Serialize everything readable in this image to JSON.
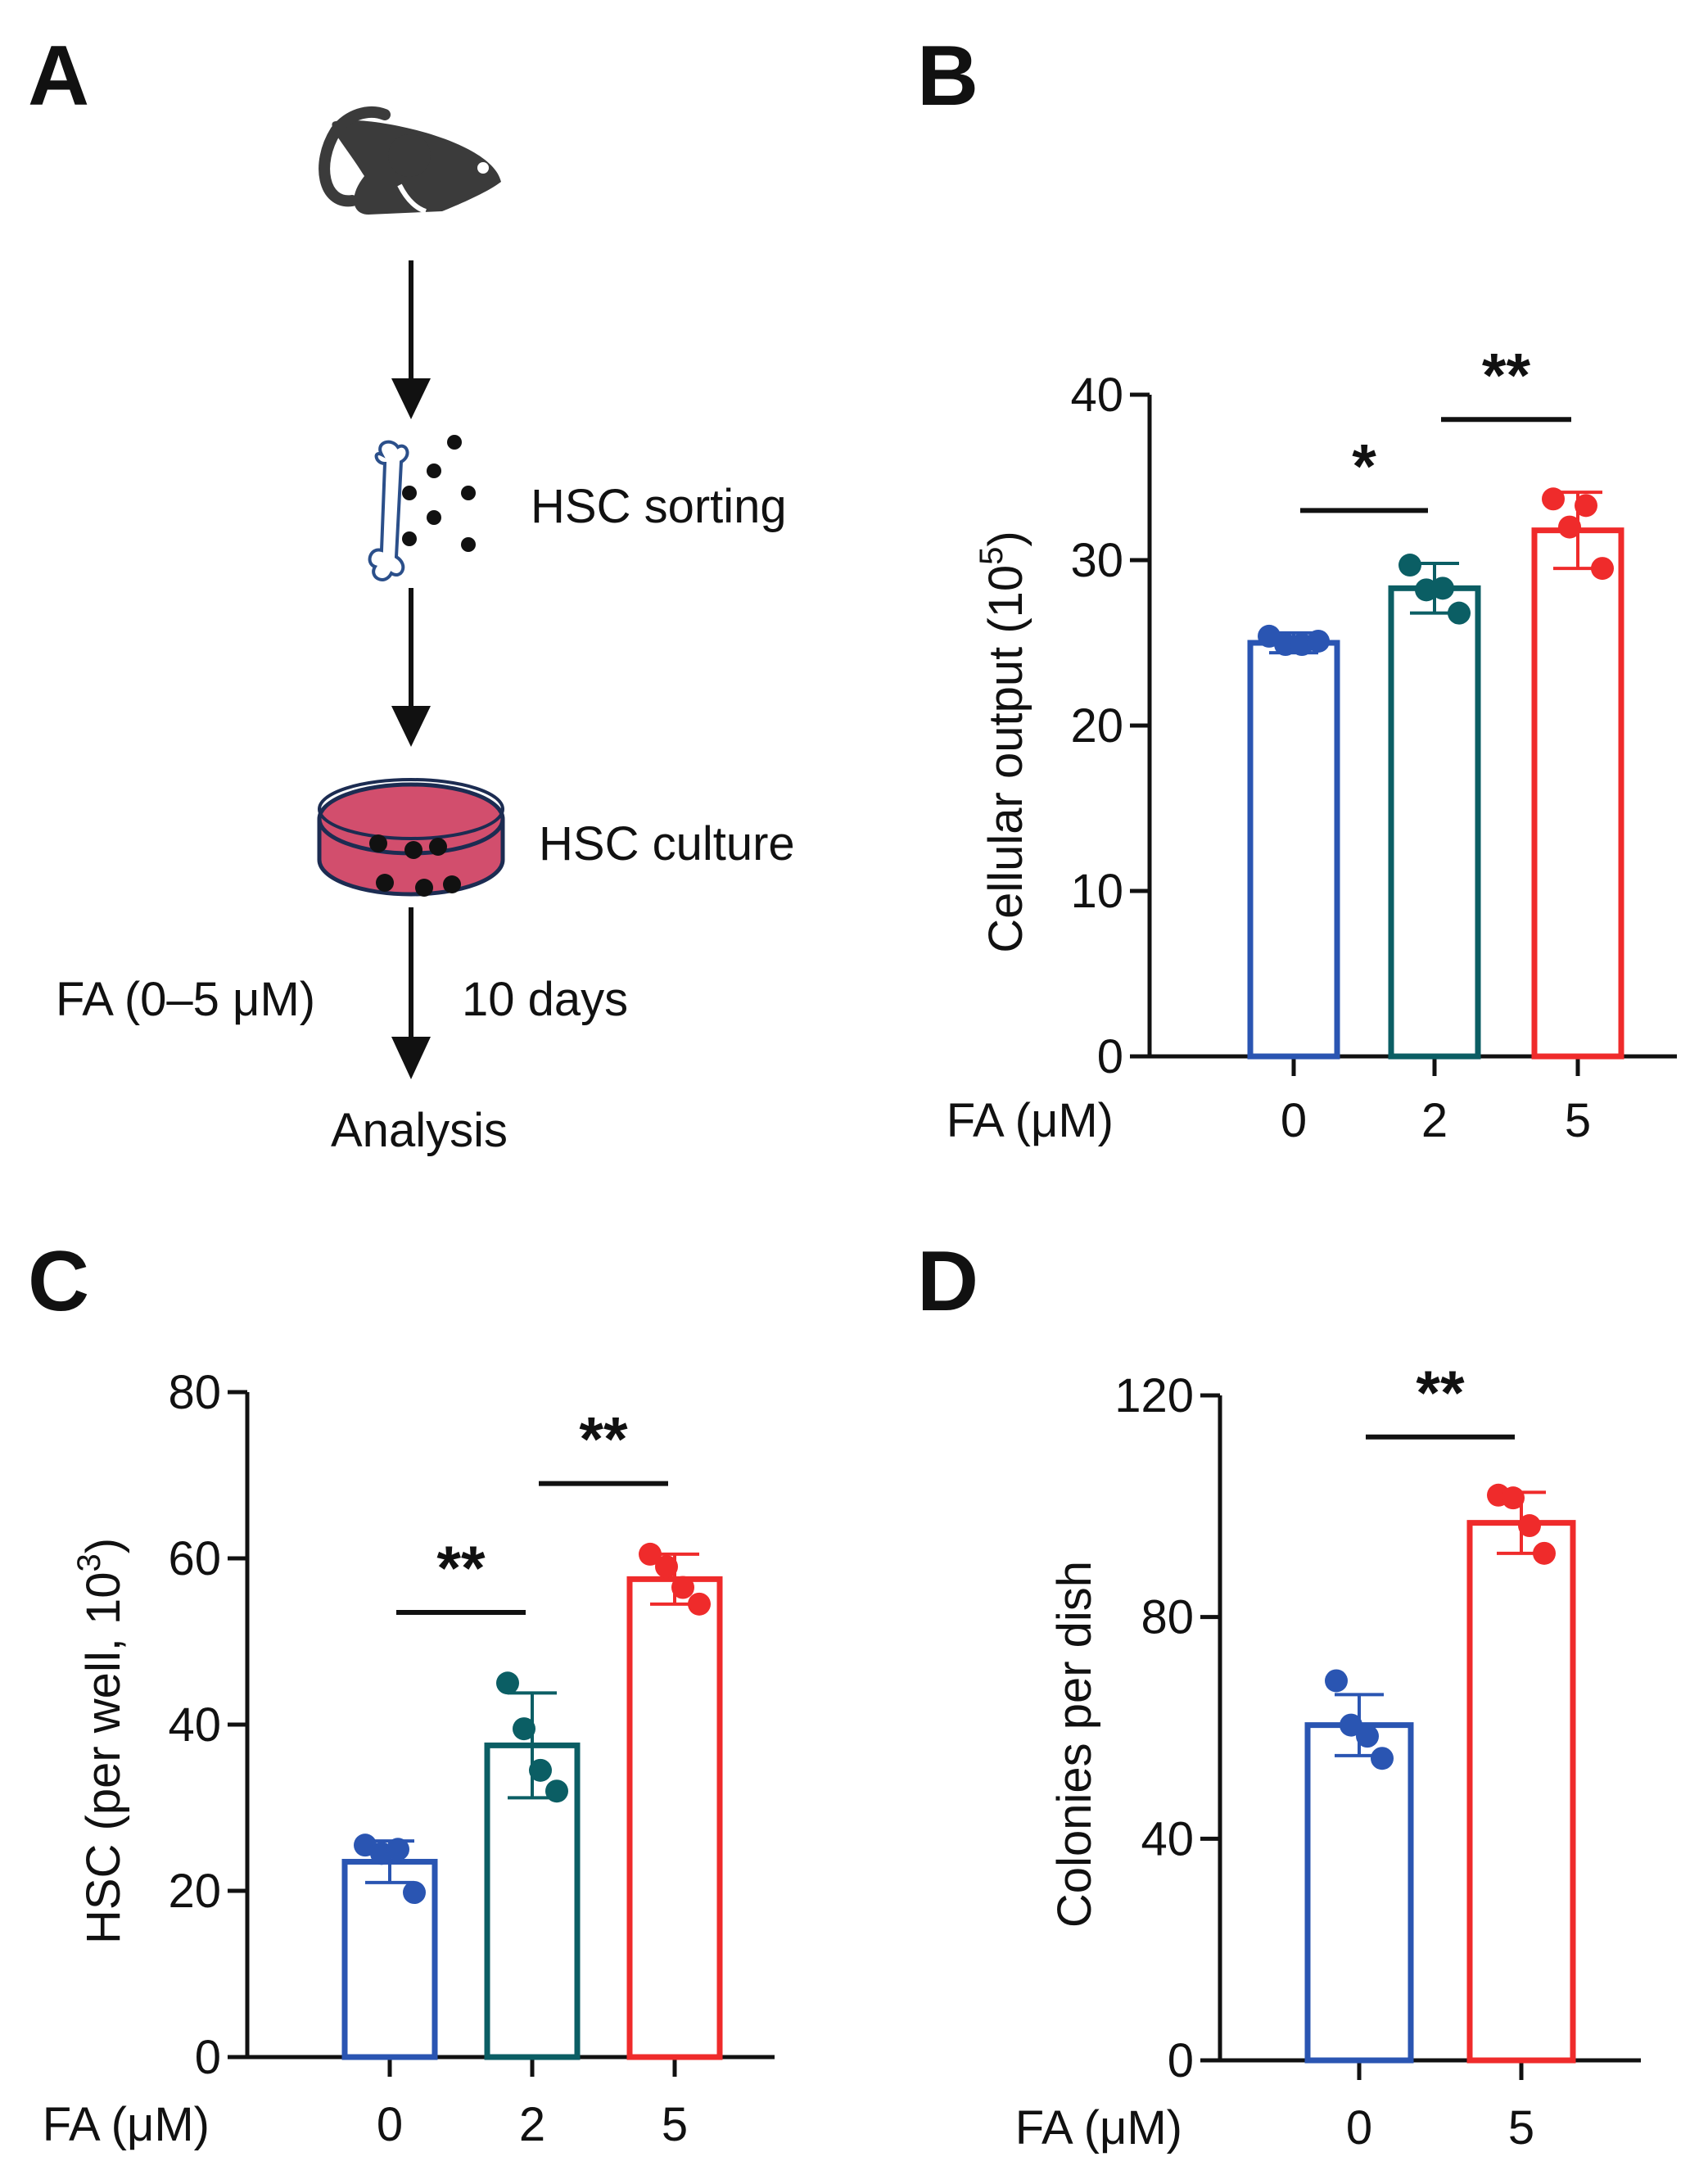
{
  "panels": {
    "A": {
      "letter": "A",
      "steps": {
        "sorting": "HSC sorting",
        "culture": "HSC culture",
        "treatment": "FA (0–5 μM)",
        "duration": "10 days",
        "analysis": "Analysis"
      },
      "icons": {
        "mouse": "mouse-icon",
        "bone": "bone-icon",
        "dish": "culture-dish-icon"
      },
      "dish_color": "#d24e6d"
    },
    "B": {
      "letter": "B"
    },
    "C": {
      "letter": "C"
    },
    "D": {
      "letter": "D"
    }
  },
  "colors": {
    "dose_0": "#2a55b2",
    "dose_2": "#0b5e64",
    "dose_5": "#ef2b2b"
  },
  "chart_data": [
    {
      "panel": "B",
      "type": "bar",
      "xlabel": "FA (μM)",
      "ylabel": "Cellular output (10",
      "ylabel_sup": "5",
      "ylabel_end": ")",
      "categories": [
        "0",
        "2",
        "5"
      ],
      "ylim": [
        0,
        40
      ],
      "yticks": [
        0,
        10,
        20,
        30,
        40
      ],
      "means": [
        25.0,
        28.3,
        31.8
      ],
      "errors": [
        0.6,
        1.5,
        2.3
      ],
      "points": [
        [
          25.4,
          24.9,
          24.9,
          25.1
        ],
        [
          29.7,
          28.2,
          28.3,
          26.8
        ],
        [
          33.7,
          32.0,
          33.3,
          29.5
        ]
      ],
      "significance": [
        {
          "from": 0,
          "to": 1,
          "label": "*",
          "y": 33
        },
        {
          "from": 1,
          "to": 2,
          "label": "**",
          "y": 38.5
        }
      ]
    },
    {
      "panel": "C",
      "type": "bar",
      "xlabel": "FA (μM)",
      "ylabel": "HSC (per well, 10",
      "ylabel_sup": "3",
      "ylabel_end": ")",
      "categories": [
        "0",
        "2",
        "5"
      ],
      "ylim": [
        0,
        80
      ],
      "yticks": [
        0,
        20,
        40,
        60,
        80
      ],
      "means": [
        23.5,
        37.5,
        57.5
      ],
      "errors": [
        2.5,
        6.3,
        3.0
      ],
      "points": [
        [
          25.5,
          24.5,
          25.0,
          19.8
        ],
        [
          45.0,
          39.5,
          34.5,
          32.0
        ],
        [
          60.5,
          59.0,
          56.5,
          54.5
        ]
      ],
      "significance": [
        {
          "from": 0,
          "to": 1,
          "label": "**",
          "y": 53.5
        },
        {
          "from": 1,
          "to": 2,
          "label": "**",
          "y": 69
        }
      ]
    },
    {
      "panel": "D",
      "type": "bar",
      "xlabel": "FA (μM)",
      "ylabel": "Colonies per dish",
      "ylabel_sup": "",
      "ylabel_end": "",
      "categories": [
        "0",
        "5"
      ],
      "ylim": [
        0,
        120
      ],
      "yticks": [
        0,
        40,
        80,
        120
      ],
      "means": [
        60.5,
        97.0
      ],
      "errors": [
        5.5,
        5.5
      ],
      "points": [
        [
          68.5,
          60.5,
          58.5,
          54.5
        ],
        [
          102.0,
          101.5,
          96.5,
          91.5
        ]
      ],
      "significance": [
        {
          "from": 0,
          "to": 1,
          "label": "**",
          "y": 112.5
        }
      ]
    }
  ]
}
